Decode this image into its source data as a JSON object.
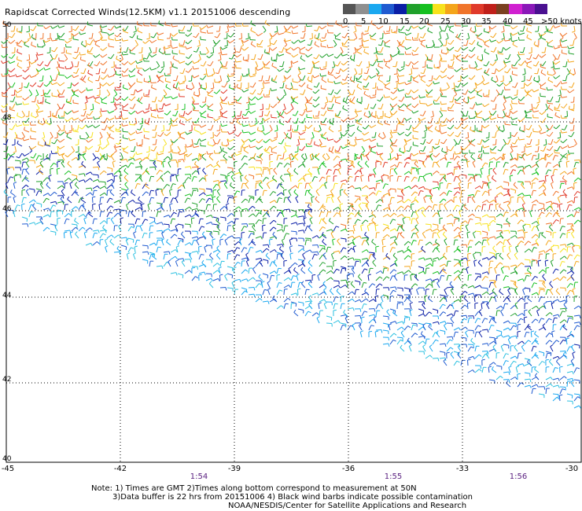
{
  "title": "Rapidscat Corrected Winds(12.5KM) v1.1 20151006 descending",
  "legend": {
    "colors": [
      "#555555",
      "#8f8f8f",
      "#1aa8f0",
      "#1f5ad0",
      "#0a1ea6",
      "#1fa02a",
      "#16c020",
      "#f7e21c",
      "#f4a51a",
      "#f0742a",
      "#e03a2a",
      "#c0201a",
      "#7a4020",
      "#d020d0",
      "#8a18b8",
      "#4a1090"
    ],
    "labels": [
      "0",
      "5",
      "10",
      "15",
      "20",
      "25",
      "30",
      "35",
      "40",
      "45",
      ">50 knots"
    ]
  },
  "axes": {
    "y_ticks": [
      "50",
      "48",
      "46",
      "44",
      "42",
      "40"
    ],
    "x_ticks": [
      "-45",
      "-42",
      "-39",
      "-36",
      "-33",
      "-30"
    ]
  },
  "times": [
    "1:54",
    "1:55",
    "1:56"
  ],
  "notes": {
    "line1": "Note: 1) Times are GMT 2)Times along bottom correspond to measurement at 50N",
    "line2": "3)Data buffer is 22 hrs from 20151006 4) Black wind barbs indicate possible contamination",
    "line3": "NOAA/NESDIS/Center for Satellite Applications and Research"
  }
}
